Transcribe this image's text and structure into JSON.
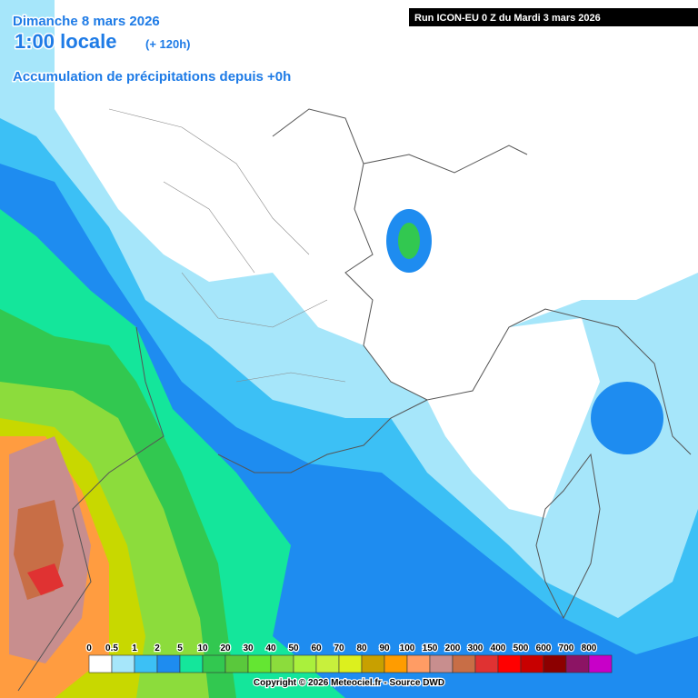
{
  "header": {
    "date": "Dimanche 8 mars 2026",
    "time": "1:00 locale",
    "offset": "(+ 120h)",
    "product": "Accumulation de précipitations depuis +0h",
    "run": "Run ICON-EU 0 Z du Mardi 3 mars 2026"
  },
  "legend": {
    "items": [
      {
        "label": "0",
        "color": "#ffffff"
      },
      {
        "label": "0.5",
        "color": "#a6e6fa"
      },
      {
        "label": "1",
        "color": "#3cc0f5"
      },
      {
        "label": "2",
        "color": "#1e8cf0"
      },
      {
        "label": "5",
        "color": "#14e69b"
      },
      {
        "label": "10",
        "color": "#32c850"
      },
      {
        "label": "20",
        "color": "#5ac83c"
      },
      {
        "label": "30",
        "color": "#64e632"
      },
      {
        "label": "40",
        "color": "#8cdc3c"
      },
      {
        "label": "50",
        "color": "#aaf03c"
      },
      {
        "label": "60",
        "color": "#c8f03c"
      },
      {
        "label": "70",
        "color": "#dcf01e"
      },
      {
        "label": "80",
        "color": "#c8a000"
      },
      {
        "label": "90",
        "color": "#ff9c00"
      },
      {
        "label": "100",
        "color": "#ff9c64"
      },
      {
        "label": "150",
        "color": "#c88e8e"
      },
      {
        "label": "200",
        "color": "#c86e46"
      },
      {
        "label": "300",
        "color": "#e03232"
      },
      {
        "label": "400",
        "color": "#ff0000"
      },
      {
        "label": "500",
        "color": "#c80000"
      },
      {
        "label": "600",
        "color": "#8c0000"
      },
      {
        "label": "700",
        "color": "#8c1464"
      },
      {
        "label": "800",
        "color": "#c800c8"
      }
    ]
  },
  "footer": {
    "copyright": "Copyright © 2026 Meteociel.fr - Source DWD"
  }
}
